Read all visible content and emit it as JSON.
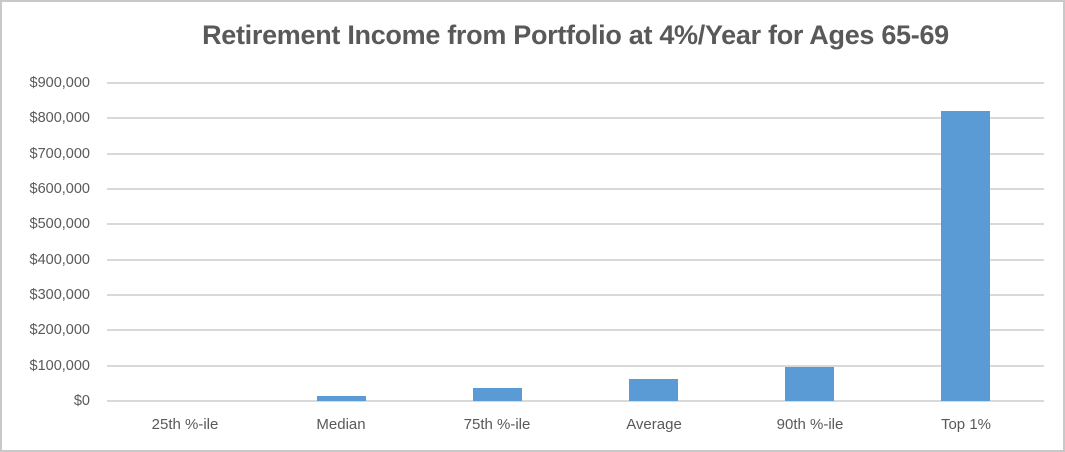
{
  "chart_data": {
    "type": "bar",
    "title": "Retirement Income from Portfolio at 4%/Year for Ages 65-69",
    "categories": [
      "25th %-ile",
      "Median",
      "75th %-ile",
      "Average",
      "90th %-ile",
      "Top 1%"
    ],
    "values": [
      0,
      13000,
      38000,
      61000,
      95000,
      820000
    ],
    "xlabel": "",
    "ylabel": "",
    "ylim": [
      0,
      900000
    ],
    "y_tick_step": 100000,
    "y_tick_labels": [
      "$0",
      "$100,000",
      "$200,000",
      "$300,000",
      "$400,000",
      "$500,000",
      "$600,000",
      "$700,000",
      "$800,000",
      "$900,000"
    ],
    "grid": true,
    "legend_position": "none",
    "colors": {
      "bar": "#5b9bd5",
      "gridline": "#d9d9d9",
      "title_text": "#595959",
      "tick_text": "#595959",
      "background": "#ffffff",
      "frame_border": "#c8c8c8"
    }
  }
}
